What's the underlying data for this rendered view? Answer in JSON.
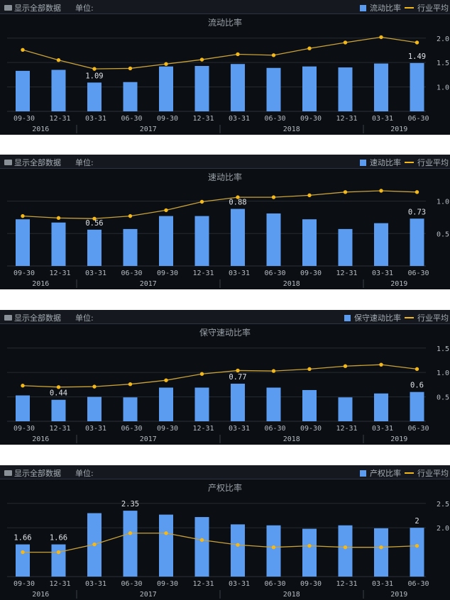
{
  "header": {
    "show_all_label": "显示全部数据",
    "unit_label": "单位:",
    "industry_avg_label": "行业平均"
  },
  "colors": {
    "bar": "#5b9bf0",
    "line": "#f2b81c",
    "background": "#0b0e12",
    "grid": "#262c33",
    "text": "#b6bcc4"
  },
  "chart_data": [
    {
      "type": "bar+line",
      "title": "流动比率",
      "categories": [
        "09-30",
        "12-31",
        "03-31",
        "06-30",
        "09-30",
        "12-31",
        "03-31",
        "06-30",
        "09-30",
        "12-31",
        "03-31",
        "06-30"
      ],
      "years": [
        {
          "label": "2016",
          "span": 2
        },
        {
          "label": "2017",
          "span": 4
        },
        {
          "label": "2018",
          "span": 4
        },
        {
          "label": "2019",
          "span": 2
        }
      ],
      "ylim": [
        0.5,
        2.2
      ],
      "yticks": [
        "2.0",
        "1.5",
        "1.0"
      ],
      "grid": true,
      "legend": "top-right",
      "series": [
        {
          "name": "流动比率",
          "kind": "bar",
          "values": [
            1.33,
            1.35,
            1.09,
            1.1,
            1.42,
            1.43,
            1.47,
            1.39,
            1.42,
            1.4,
            1.48,
            1.49
          ]
        },
        {
          "name": "行业平均",
          "kind": "line",
          "values": [
            1.76,
            1.55,
            1.37,
            1.38,
            1.47,
            1.56,
            1.67,
            1.65,
            1.79,
            1.91,
            2.02,
            1.91
          ]
        }
      ],
      "data_labels": [
        {
          "index": 2,
          "text": "1.09"
        },
        {
          "index": 11,
          "text": "1.49"
        }
      ]
    },
    {
      "type": "bar+line",
      "title": "速动比率",
      "categories": [
        "09-30",
        "12-31",
        "03-31",
        "06-30",
        "09-30",
        "12-31",
        "03-31",
        "06-30",
        "09-30",
        "12-31",
        "03-31",
        "06-30"
      ],
      "years": [
        {
          "label": "2016",
          "span": 2
        },
        {
          "label": "2017",
          "span": 4
        },
        {
          "label": "2018",
          "span": 4
        },
        {
          "label": "2019",
          "span": 2
        }
      ],
      "ylim": [
        0,
        1.28
      ],
      "yticks": [
        "1.0",
        "0.5"
      ],
      "grid": true,
      "legend": "top-right",
      "series": [
        {
          "name": "速动比率",
          "kind": "bar",
          "values": [
            0.72,
            0.67,
            0.56,
            0.57,
            0.77,
            0.77,
            0.88,
            0.81,
            0.72,
            0.57,
            0.66,
            0.73
          ]
        },
        {
          "name": "行业平均",
          "kind": "line",
          "values": [
            0.77,
            0.74,
            0.73,
            0.77,
            0.86,
            0.99,
            1.06,
            1.06,
            1.09,
            1.14,
            1.16,
            1.14
          ]
        }
      ],
      "data_labels": [
        {
          "index": 2,
          "text": "0.56"
        },
        {
          "index": 6,
          "text": "0.88"
        },
        {
          "index": 11,
          "text": "0.73"
        }
      ]
    },
    {
      "type": "bar+line",
      "title": "保守速动比率",
      "categories": [
        "09-30",
        "12-31",
        "03-31",
        "06-30",
        "09-30",
        "12-31",
        "03-31",
        "06-30",
        "09-30",
        "12-31",
        "03-31",
        "06-30"
      ],
      "years": [
        {
          "label": "2016",
          "span": 2
        },
        {
          "label": "2017",
          "span": 4
        },
        {
          "label": "2018",
          "span": 4
        },
        {
          "label": "2019",
          "span": 2
        }
      ],
      "ylim": [
        0,
        1.7
      ],
      "yticks": [
        "1.5",
        "1.0",
        "0.5"
      ],
      "grid": true,
      "legend": "top-right",
      "series": [
        {
          "name": "保守速动比率",
          "kind": "bar",
          "values": [
            0.53,
            0.44,
            0.5,
            0.49,
            0.69,
            0.69,
            0.77,
            0.69,
            0.64,
            0.49,
            0.57,
            0.6
          ]
        },
        {
          "name": "行业平均",
          "kind": "line",
          "values": [
            0.73,
            0.7,
            0.71,
            0.76,
            0.84,
            0.97,
            1.04,
            1.03,
            1.07,
            1.13,
            1.16,
            1.07
          ]
        }
      ],
      "data_labels": [
        {
          "index": 1,
          "text": "0.44"
        },
        {
          "index": 6,
          "text": "0.77"
        },
        {
          "index": 11,
          "text": "0.6"
        }
      ]
    },
    {
      "type": "bar+line",
      "title": "产权比率",
      "categories": [
        "09-30",
        "12-31",
        "03-31",
        "06-30",
        "09-30",
        "12-31",
        "03-31",
        "06-30",
        "09-30",
        "12-31",
        "03-31",
        "06-30"
      ],
      "years": [
        {
          "label": "2016",
          "span": 2
        },
        {
          "label": "2017",
          "span": 4
        },
        {
          "label": "2018",
          "span": 4
        },
        {
          "label": "2019",
          "span": 2
        }
      ],
      "ylim": [
        1.0,
        2.7
      ],
      "yticks": [
        "2.5",
        "2.0"
      ],
      "grid": true,
      "legend": "top-right",
      "series": [
        {
          "name": "产权比率",
          "kind": "bar",
          "values": [
            1.66,
            1.66,
            2.3,
            2.35,
            2.27,
            2.22,
            2.07,
            2.05,
            1.98,
            2.05,
            1.99,
            2.0
          ]
        },
        {
          "name": "行业平均",
          "kind": "line",
          "values": [
            1.5,
            1.5,
            1.66,
            1.89,
            1.89,
            1.75,
            1.65,
            1.6,
            1.63,
            1.6,
            1.6,
            1.63
          ]
        }
      ],
      "data_labels": [
        {
          "index": 0,
          "text": "1.66"
        },
        {
          "index": 1,
          "text": "1.66"
        },
        {
          "index": 3,
          "text": "2.35"
        },
        {
          "index": 11,
          "text": "2"
        }
      ]
    }
  ]
}
